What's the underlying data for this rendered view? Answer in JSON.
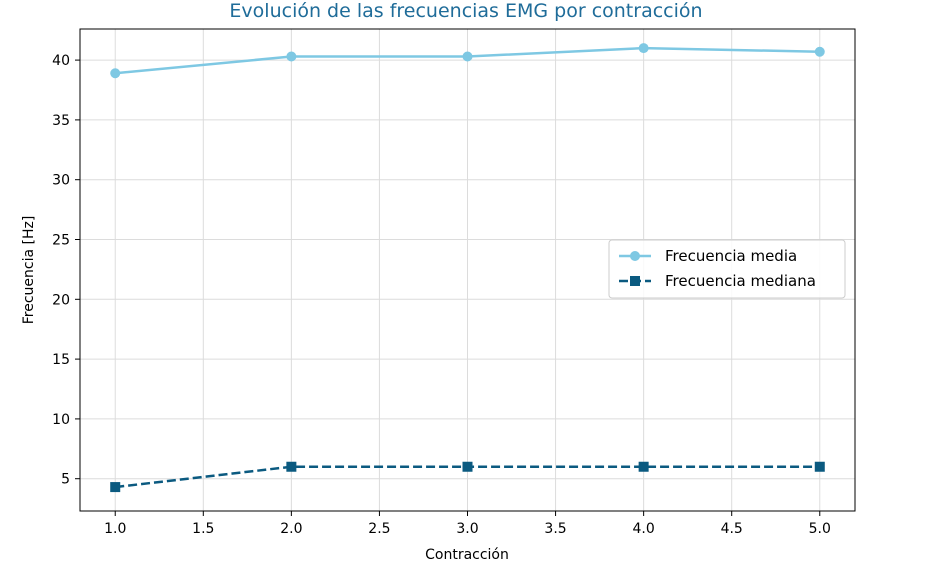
{
  "chart_data": {
    "type": "line",
    "title": "Evolución de las frecuencias EMG por contracción",
    "xlabel": "Contracción",
    "ylabel": "Frecuencia [Hz]",
    "xlim": [
      0.8,
      5.2
    ],
    "ylim": [
      2.3,
      42.6
    ],
    "x": [
      1.0,
      2.0,
      3.0,
      4.0,
      5.0
    ],
    "xticks": [
      "1.0",
      "1.5",
      "2.0",
      "2.5",
      "3.0",
      "3.5",
      "4.0",
      "4.5",
      "5.0"
    ],
    "xtick_values": [
      1.0,
      1.5,
      2.0,
      2.5,
      3.0,
      3.5,
      4.0,
      4.5,
      5.0
    ],
    "yticks": [
      "5",
      "10",
      "15",
      "20",
      "25",
      "30",
      "35",
      "40"
    ],
    "ytick_values": [
      5,
      10,
      15,
      20,
      25,
      30,
      35,
      40
    ],
    "grid": true,
    "legend_position": "center-right",
    "series": [
      {
        "name": "Frecuencia media",
        "values": [
          38.9,
          40.3,
          40.3,
          41.0,
          40.7
        ],
        "color": "#7ec8e3",
        "marker": "circle",
        "linestyle": "solid"
      },
      {
        "name": "Frecuencia mediana",
        "values": [
          4.3,
          6.0,
          6.0,
          6.0,
          6.0
        ],
        "color": "#0b5a80",
        "marker": "square",
        "linestyle": "dashed"
      }
    ],
    "title_color": "#1f6c99"
  }
}
